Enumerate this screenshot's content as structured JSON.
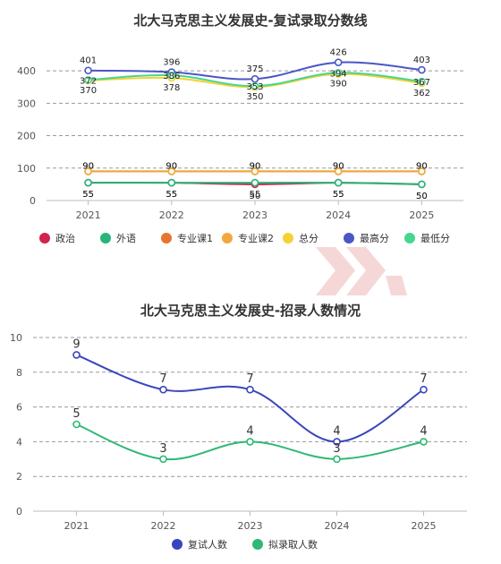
{
  "colors": {
    "politics": "#d2224e",
    "foreign_language": "#27b57a",
    "major1": "#e8742e",
    "major2": "#f0a83a",
    "total": "#f4d233",
    "max": "#4b56c7",
    "min": "#46d690",
    "admit_invite": "#3a45bd",
    "admit_accept": "#2fb874",
    "axis_text": "#555555",
    "grid": "#999999",
    "title": "#333333",
    "watermark": "#f2c9c9"
  },
  "chart_data": [
    {
      "type": "line",
      "title": "北大马克思主义发展史-复试录取分数线",
      "categories": [
        "2021",
        "2022",
        "2023",
        "2024",
        "2025"
      ],
      "ylim": [
        0,
        450
      ],
      "yticks": [
        "0",
        "100",
        "200",
        "300",
        "400"
      ],
      "grid": true,
      "legend_position": "bottom",
      "series": [
        {
          "name": "政治",
          "key": "politics",
          "values": [
            55,
            55,
            50,
            55,
            50
          ],
          "labels": [
            "55",
            "55",
            "50",
            "55",
            "50"
          ]
        },
        {
          "name": "外语",
          "key": "foreign_language",
          "values": [
            55,
            55,
            55,
            55,
            50
          ],
          "labels": [
            "55",
            "55",
            "55",
            "55",
            "50"
          ]
        },
        {
          "name": "专业课1",
          "key": "major1",
          "values": [
            90,
            90,
            90,
            90,
            90
          ],
          "labels": [
            "90",
            "90",
            "90",
            "90",
            "90"
          ]
        },
        {
          "name": "专业课2",
          "key": "major2",
          "values": [
            90,
            90,
            90,
            90,
            90
          ],
          "labels": [
            "90",
            "90",
            "90",
            "90",
            "90"
          ]
        },
        {
          "name": "总分",
          "key": "total",
          "values": [
            370,
            378,
            350,
            390,
            362
          ],
          "labels": [
            "370",
            "378",
            "350",
            "390",
            "362"
          ]
        },
        {
          "name": "最高分",
          "key": "max",
          "values": [
            401,
            396,
            375,
            426,
            403
          ],
          "labels": [
            "401",
            "396",
            "375",
            "426",
            "403"
          ]
        },
        {
          "name": "最低分",
          "key": "min",
          "values": [
            372,
            386,
            353,
            394,
            367
          ],
          "labels": [
            "372",
            "386",
            "353",
            "394",
            "367"
          ]
        }
      ]
    },
    {
      "type": "line",
      "title": "北大马克思主义发展史-招录人数情况",
      "categories": [
        "2021",
        "2022",
        "2023",
        "2024",
        "2025"
      ],
      "ylim": [
        0,
        10
      ],
      "yticks": [
        "0",
        "2",
        "4",
        "6",
        "8",
        "10"
      ],
      "grid": true,
      "legend_position": "bottom",
      "series": [
        {
          "name": "复试人数",
          "key": "admit_invite",
          "values": [
            9,
            7,
            7,
            4,
            7
          ],
          "labels": [
            "9",
            "7",
            "7",
            "4",
            "7"
          ]
        },
        {
          "name": "拟录取人数",
          "key": "admit_accept",
          "values": [
            5,
            3,
            4,
            3,
            4
          ],
          "labels": [
            "5",
            "3",
            "4",
            "3",
            "4"
          ]
        }
      ]
    }
  ]
}
